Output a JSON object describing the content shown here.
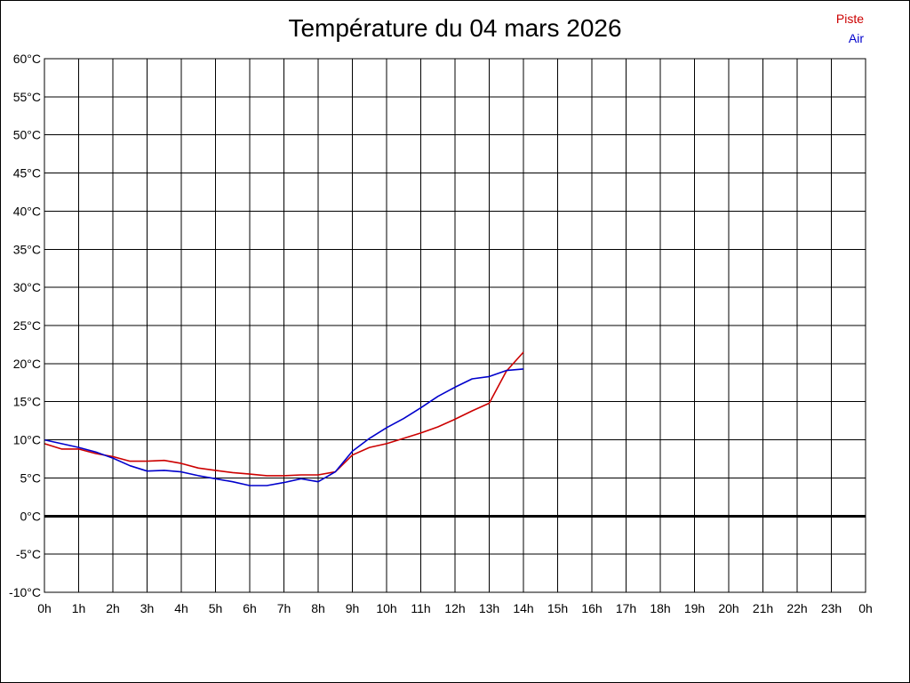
{
  "chart_data": {
    "type": "line",
    "title": "Température du 04 mars 2026",
    "xlabel": "",
    "ylabel": "",
    "x_tick_labels": [
      "0h",
      "1h",
      "2h",
      "3h",
      "4h",
      "5h",
      "6h",
      "7h",
      "8h",
      "9h",
      "10h",
      "11h",
      "12h",
      "13h",
      "14h",
      "15h",
      "16h",
      "17h",
      "18h",
      "19h",
      "20h",
      "21h",
      "22h",
      "23h",
      "0h"
    ],
    "xlim": [
      0,
      24
    ],
    "y_tick_labels": [
      "60°C",
      "55°C",
      "50°C",
      "45°C",
      "40°C",
      "35°C",
      "30°C",
      "25°C",
      "20°C",
      "15°C",
      "10°C",
      "5°C",
      "0°C",
      "-5°C",
      "-10°C"
    ],
    "ylim": [
      -10,
      60
    ],
    "y_tick_step": 5,
    "grid": true,
    "zero_line": true,
    "legend_position": "top-right",
    "series": [
      {
        "name": "Piste",
        "color": "#cc0000",
        "x": [
          0,
          0.5,
          1,
          1.5,
          2,
          2.5,
          3,
          3.5,
          4,
          4.5,
          5,
          5.5,
          6,
          6.5,
          7,
          7.5,
          8,
          8.5,
          9,
          9.5,
          10,
          10.5,
          11,
          11.5,
          12,
          12.5,
          13,
          13.5,
          14
        ],
        "values": [
          9.5,
          8.8,
          8.8,
          8.2,
          7.8,
          7.2,
          7.2,
          7.3,
          6.9,
          6.3,
          6.0,
          5.7,
          5.5,
          5.3,
          5.3,
          5.4,
          5.4,
          5.8,
          8.0,
          9.0,
          9.5,
          10.2,
          10.9,
          11.7,
          12.7,
          13.8,
          14.8,
          19.0,
          21.5
        ]
      },
      {
        "name": "Air",
        "color": "#0000cc",
        "x": [
          0,
          0.5,
          1,
          1.5,
          2,
          2.5,
          3,
          3.5,
          4,
          4.5,
          5,
          5.5,
          6,
          6.5,
          7,
          7.5,
          8,
          8.5,
          9,
          9.5,
          10,
          10.5,
          11,
          11.5,
          12,
          12.5,
          13,
          13.5,
          14
        ],
        "values": [
          10.0,
          9.5,
          9.0,
          8.4,
          7.6,
          6.6,
          5.9,
          6.0,
          5.8,
          5.3,
          4.9,
          4.5,
          4.0,
          4.0,
          4.4,
          4.9,
          4.5,
          5.8,
          8.5,
          10.2,
          11.6,
          12.8,
          14.2,
          15.7,
          16.9,
          18.0,
          18.3,
          19.1,
          19.3
        ]
      }
    ]
  }
}
